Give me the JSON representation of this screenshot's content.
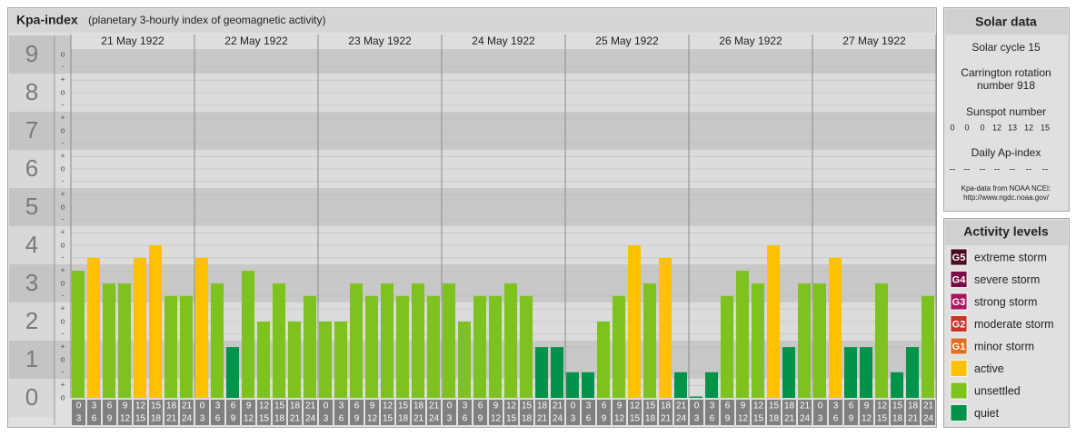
{
  "chart_data": {
    "type": "bar",
    "title": "Kpa-index",
    "subtitle": "(planetary 3-hourly index of geomagnetic activity)",
    "days": [
      "21 May 1922",
      "22 May 1922",
      "23 May 1922",
      "24 May 1922",
      "25 May 1922",
      "26 May 1922",
      "27 May 1922"
    ],
    "hours_start": [
      "0",
      "3",
      "6",
      "9",
      "12",
      "15",
      "18",
      "21"
    ],
    "hours_end": [
      "3",
      "6",
      "9",
      "12",
      "15",
      "18",
      "21",
      "24"
    ],
    "values": [
      3.33,
      3.67,
      3,
      3,
      3.67,
      4,
      2.67,
      2.67,
      3.67,
      3,
      1.33,
      3.33,
      2,
      3,
      2,
      2.67,
      2,
      2,
      3,
      2.67,
      3,
      2.67,
      3,
      2.67,
      3,
      2,
      2.67,
      2.67,
      3,
      2.67,
      1.33,
      1.33,
      0.67,
      0.67,
      2,
      2.67,
      4,
      3,
      3.67,
      0.67,
      0,
      0.67,
      2.67,
      3.33,
      3,
      4,
      1.33,
      3,
      3,
      3.67,
      1.33,
      1.33,
      3,
      0.67,
      1.33,
      2.67
    ],
    "colors": [
      "#7dc21e",
      "#ffc000",
      "#7dc21e",
      "#7dc21e",
      "#ffc000",
      "#ffc000",
      "#7dc21e",
      "#7dc21e",
      "#ffc000",
      "#7dc21e",
      "#00934a",
      "#7dc21e",
      "#7dc21e",
      "#7dc21e",
      "#7dc21e",
      "#7dc21e",
      "#7dc21e",
      "#7dc21e",
      "#7dc21e",
      "#7dc21e",
      "#7dc21e",
      "#7dc21e",
      "#7dc21e",
      "#7dc21e",
      "#7dc21e",
      "#7dc21e",
      "#7dc21e",
      "#7dc21e",
      "#7dc21e",
      "#7dc21e",
      "#00934a",
      "#00934a",
      "#00934a",
      "#00934a",
      "#7dc21e",
      "#7dc21e",
      "#ffc000",
      "#7dc21e",
      "#ffc000",
      "#00934a",
      "#00934a",
      "#00934a",
      "#7dc21e",
      "#7dc21e",
      "#7dc21e",
      "#ffc000",
      "#00934a",
      "#7dc21e",
      "#7dc21e",
      "#ffc000",
      "#00934a",
      "#00934a",
      "#7dc21e",
      "#00934a",
      "#00934a",
      "#7dc21e"
    ],
    "ylim": [
      0,
      9.5
    ],
    "yticks": [
      0,
      1,
      2,
      3,
      4,
      5,
      6,
      7,
      8,
      9
    ],
    "minor_yticks": [
      {
        "value": 0,
        "label": "o"
      },
      {
        "value": 0.33,
        "label": "+"
      },
      {
        "value": 0.67,
        "label": "-"
      },
      {
        "value": 1,
        "label": "o"
      },
      {
        "value": 1.33,
        "label": "+"
      },
      {
        "value": 1.67,
        "label": "-"
      },
      {
        "value": 2,
        "label": "o"
      },
      {
        "value": 2.33,
        "label": "+"
      },
      {
        "value": 2.67,
        "label": "-"
      },
      {
        "value": 3,
        "label": "o"
      },
      {
        "value": 3.33,
        "label": "+"
      },
      {
        "value": 3.67,
        "label": "-"
      },
      {
        "value": 4,
        "label": "o"
      },
      {
        "value": 4.33,
        "label": "+"
      },
      {
        "value": 4.67,
        "label": "-"
      },
      {
        "value": 5,
        "label": "o"
      },
      {
        "value": 5.33,
        "label": "+"
      },
      {
        "value": 5.67,
        "label": "-"
      },
      {
        "value": 6,
        "label": "o"
      },
      {
        "value": 6.33,
        "label": "+"
      },
      {
        "value": 6.67,
        "label": "-"
      },
      {
        "value": 7,
        "label": "o"
      },
      {
        "value": 7.33,
        "label": "+"
      },
      {
        "value": 7.67,
        "label": "-"
      },
      {
        "value": 8,
        "label": "o"
      },
      {
        "value": 8.33,
        "label": "+"
      },
      {
        "value": 8.67,
        "label": "-"
      },
      {
        "value": 9,
        "label": "o"
      }
    ],
    "grid": true
  },
  "solar_data": {
    "title": "Solar data",
    "cycle": "Solar cycle 15",
    "carrington": [
      "Carrington rotation",
      "number 918"
    ],
    "sunspot_title": "Sunspot number",
    "sunspot": [
      0,
      0,
      0,
      12,
      13,
      12,
      15
    ],
    "ap_title": "Daily Ap-index",
    "ap": [
      "--",
      "--",
      "--",
      "--",
      "--",
      "--",
      "--"
    ],
    "source": [
      "Kpa-data from NOAA NCEI:",
      "http://www.ngdc.noaa.gov/"
    ]
  },
  "activity_levels": {
    "title": "Activity levels",
    "items": [
      {
        "code": "G5",
        "name": "extreme storm",
        "color": "#4a0a22"
      },
      {
        "code": "G4",
        "name": "severe storm",
        "color": "#7a0a44"
      },
      {
        "code": "G3",
        "name": "strong storm",
        "color": "#a8165e"
      },
      {
        "code": "G2",
        "name": "moderate storm",
        "color": "#c83228"
      },
      {
        "code": "G1",
        "name": "minor storm",
        "color": "#e07020"
      },
      {
        "name": "active",
        "color": "#ffc000"
      },
      {
        "name": "unsettled",
        "color": "#7dc21e"
      },
      {
        "name": "quiet",
        "color": "#00934a"
      }
    ]
  }
}
